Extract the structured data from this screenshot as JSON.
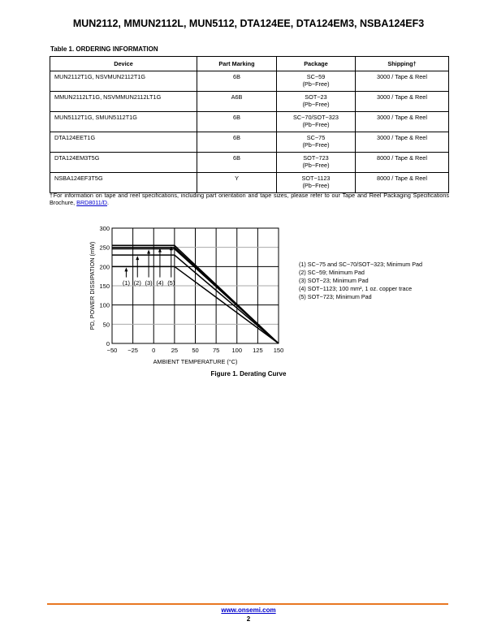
{
  "header": {
    "title": "MUN2112, MMUN2112L, MUN5112, DTA124EE, DTA124EM3, NSBA124EF3"
  },
  "table": {
    "caption": "Table 1. ORDERING INFORMATION",
    "columns": [
      "Device",
      "Part Marking",
      "Package",
      "Shipping†"
    ],
    "rows": [
      [
        "MUN2112T1G, NSVMUN2112T1G",
        "6B",
        "SC−59",
        "(Pb−Free)",
        "3000 / Tape & Reel"
      ],
      [
        "MMUN2112LT1G, NSVMMUN2112LT1G",
        "A6B",
        "SOT−23",
        "(Pb−Free)",
        "3000 / Tape & Reel"
      ],
      [
        "MUN5112T1G, SMUN5112T1G",
        "6B",
        "SC−70/SOT−323",
        "(Pb−Free)",
        "3000 / Tape & Reel"
      ],
      [
        "DTA124EET1G",
        "6B",
        "SC−75",
        "(Pb−Free)",
        "3000 / Tape & Reel"
      ],
      [
        "DTA124EM3T5G",
        "6B",
        "SOT−723",
        "(Pb−Free)",
        "8000 / Tape & Reel"
      ],
      [
        "NSBA124EF3T5G",
        "Y",
        "SOT−1123",
        "(Pb−Free)",
        "8000 / Tape & Reel"
      ]
    ],
    "footnote": "†For information on tape and reel specifications, including part orientation and tape sizes, please refer to our Tape and Reel Packaging Specifications Brochure, ",
    "footnote_link": "BRD8011/D",
    "footnote_end": "."
  },
  "chart_data": {
    "type": "line",
    "title": "Figure 1. Derating Curve",
    "xlabel": "AMBIENT TEMPERATURE (°C)",
    "ylabel": "P_D, POWER DISSIPATION (mW)",
    "xlim": [
      -50,
      150
    ],
    "ylim": [
      0,
      300
    ],
    "xticks": [
      "−50",
      "−25",
      "0",
      "25",
      "50",
      "75",
      "100",
      "125",
      "150"
    ],
    "yticks": [
      "0",
      "50",
      "100",
      "150",
      "200",
      "250",
      "300"
    ],
    "grid": true,
    "series": [
      {
        "name": "(1)",
        "x": [
          -50,
          25,
          150
        ],
        "y": [
          200,
          200,
          0
        ]
      },
      {
        "name": "(2)",
        "x": [
          -50,
          25,
          150
        ],
        "y": [
          230,
          230,
          0
        ]
      },
      {
        "name": "(3)",
        "x": [
          -50,
          25,
          150
        ],
        "y": [
          246,
          246,
          0
        ]
      },
      {
        "name": "(4)",
        "x": [
          -50,
          25,
          150
        ],
        "y": [
          250,
          250,
          0
        ]
      },
      {
        "name": "(5)",
        "x": [
          -50,
          25,
          150
        ],
        "y": [
          255,
          255,
          0
        ]
      }
    ],
    "legend": [
      "(1) SC−75 and SC−70/SOT−323; Minimum Pad",
      "(2) SC−59; Minimum Pad",
      "(3) SOT−23; Minimum Pad",
      "(4) SOT−1123; 100 mm², 1 oz. copper trace",
      "(5) SOT−723; Minimum Pad"
    ]
  },
  "footer": {
    "url": "www.onsemi.com",
    "page": "2",
    "accent": "#e87722"
  }
}
